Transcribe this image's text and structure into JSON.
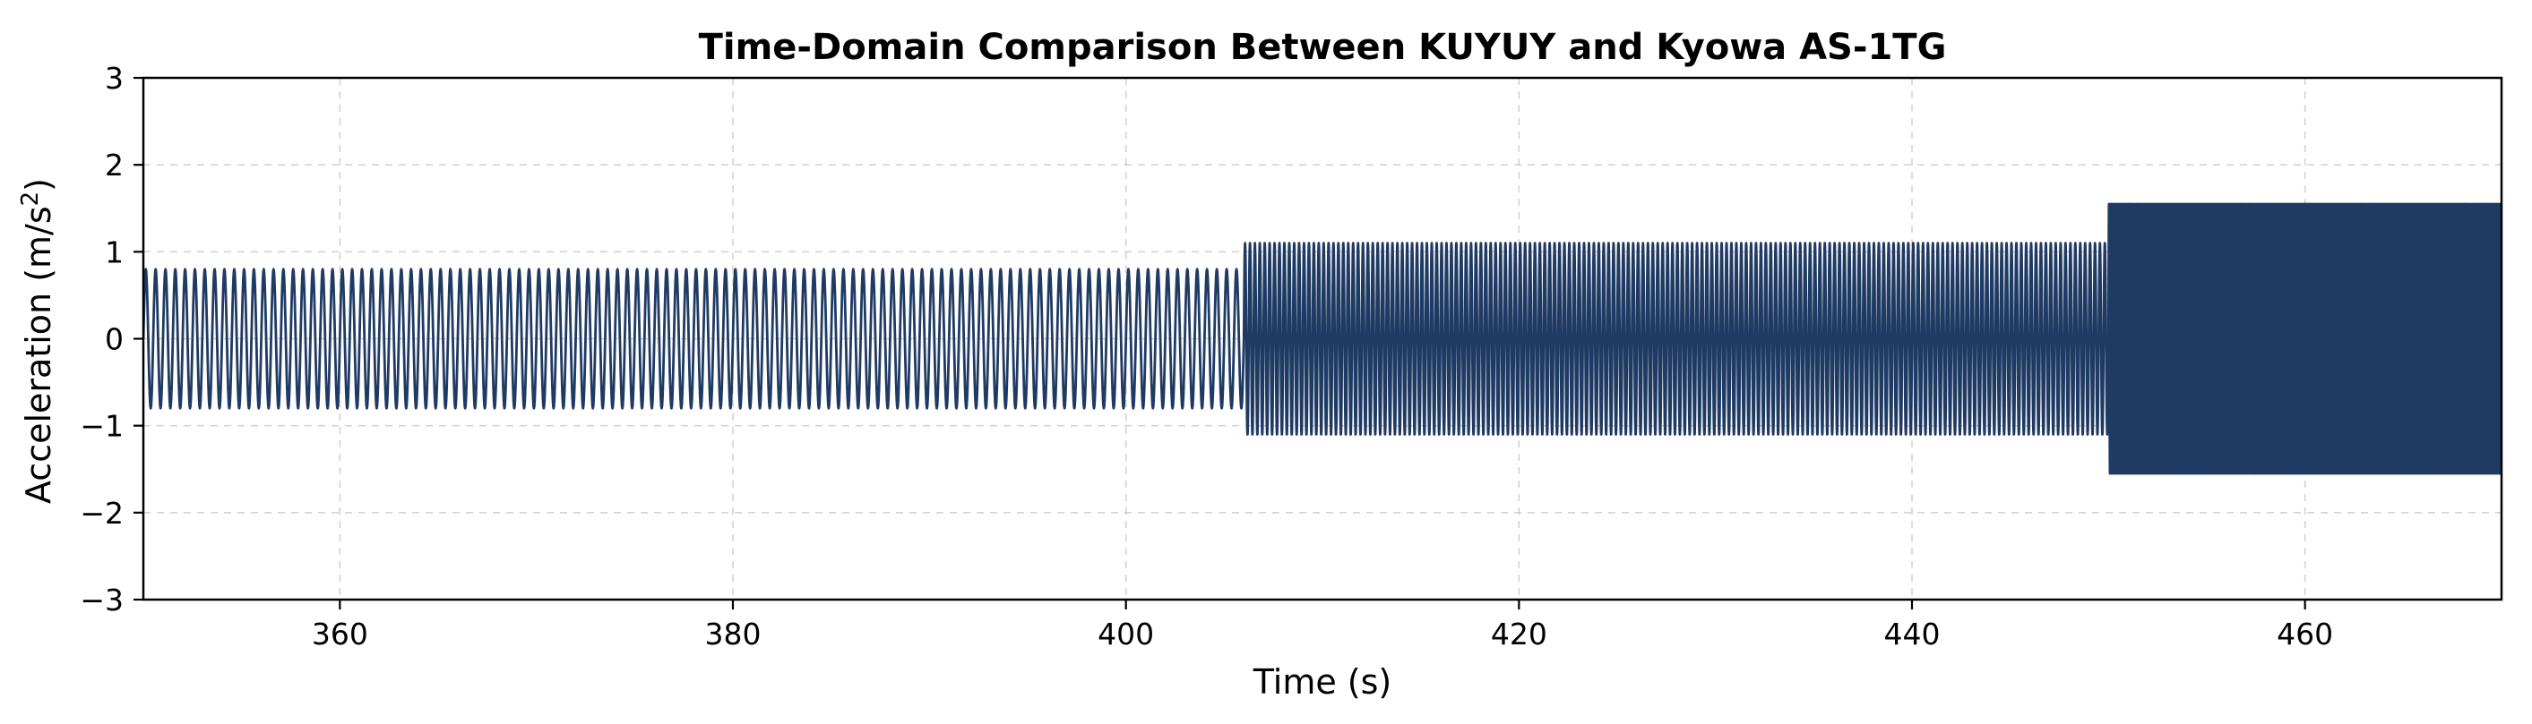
{
  "chart_data": {
    "type": "line",
    "title": "Time-Domain Comparison Between KUYUY and Kyowa AS-1TG",
    "xlabel": "Time (s)",
    "ylabel_main": "Acceleration (m/s",
    "ylabel_sup": "2",
    "ylabel_end": ")",
    "xlim": [
      350,
      470
    ],
    "ylim": [
      -3,
      3
    ],
    "xticks": [
      360,
      380,
      400,
      420,
      440,
      460
    ],
    "yticks": [
      -3,
      -2,
      -1,
      0,
      1,
      2,
      3
    ],
    "xtick_labels": [
      "360",
      "380",
      "400",
      "420",
      "440",
      "460"
    ],
    "ytick_labels": [
      "−3",
      "−2",
      "−1",
      "0",
      "1",
      "2",
      "3"
    ],
    "grid": true,
    "grid_style": "dashed",
    "series": [
      {
        "color": "#1f3a63",
        "segments": [
          {
            "t_start": 350,
            "t_end": 406,
            "amplitude": 0.8,
            "frequency_hz": 2.0
          },
          {
            "t_start": 406,
            "t_end": 450,
            "amplitude": 1.1,
            "frequency_hz": 4.0
          },
          {
            "t_start": 450,
            "t_end": 470,
            "amplitude": 1.55,
            "frequency_hz": 10.0
          }
        ]
      }
    ]
  }
}
